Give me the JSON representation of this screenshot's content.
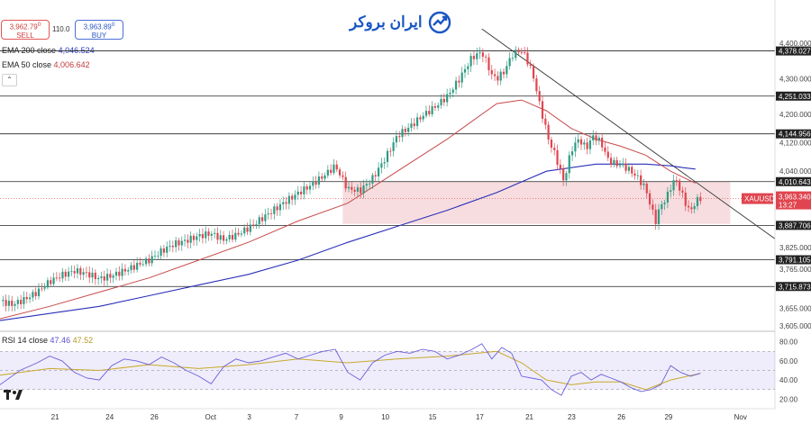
{
  "header": {
    "sell_price": "3,962.79",
    "sell_sup": "0",
    "sell_label": "SELL",
    "buy_price": "3,963.89",
    "buy_sup": "0",
    "buy_label": "BUY",
    "spread": "110.0",
    "ema200_label": "EMA 200 close",
    "ema200_value": "4,046.524",
    "ema50_label": "EMA 50 close",
    "ema50_value": "4,006.642",
    "collapse_glyph": "⌃",
    "rsi_label": "RSI 14 close",
    "rsi_value": "47.46",
    "rsi_ma_value": "47.52",
    "logo_text": "ایران بروکر"
  },
  "colors": {
    "up": "#2e9c84",
    "down": "#e0454f",
    "ema200": "#2a2fb8",
    "ema50": "#c94a4a",
    "zone": "#f2c6c9",
    "rsi": "#6a5fd8",
    "rsi_ma": "#c8a82a",
    "logo": "#1a56c4"
  },
  "chart_data": [
    {
      "type": "line",
      "title": "",
      "symbol": "XAUUSD",
      "current_price": "3,963.340",
      "countdown": "13:27",
      "ylim": [
        3590,
        4420
      ],
      "y_ticks": [
        "4,400.000",
        "4,300.000",
        "4,200.000",
        "4,120.000",
        "4,040.000",
        "3,825.000",
        "3,765.000",
        "3,655.000",
        "3,605.000"
      ],
      "x_ticks": [
        "21",
        "24",
        "26",
        "Oct",
        "3",
        "7",
        "9",
        "10",
        "15",
        "17",
        "21",
        "23",
        "26",
        "29",
        "Nov"
      ],
      "x_tick_positions": [
        22,
        44,
        62,
        84,
        101,
        120,
        138,
        155,
        174,
        193,
        213,
        230,
        250,
        269,
        297
      ],
      "levels": [
        {
          "label": "4,378.027",
          "value": 4378.027
        },
        {
          "label": "4,251.033",
          "value": 4251.033
        },
        {
          "label": "4,144.956",
          "value": 4144.956
        },
        {
          "label": "4,010.643",
          "value": 4010.643
        },
        {
          "label": "3,887.706",
          "value": 3887.706
        },
        {
          "label": "3,791.105",
          "value": 3791.105
        },
        {
          "label": "3,715.873",
          "value": 3715.873
        }
      ],
      "zone": {
        "x_start": 138,
        "x_end": 294,
        "top": 4010,
        "bottom": 3892
      },
      "trendline": {
        "x1": 194,
        "y1": 4440,
        "x2": 312,
        "y2": 3850
      },
      "series": [
        {
          "name": "XAUUSD",
          "x": [
            0,
            5,
            10,
            15,
            20,
            25,
            30,
            35,
            40,
            45,
            50,
            55,
            60,
            65,
            70,
            75,
            80,
            85,
            90,
            95,
            100,
            105,
            110,
            115,
            120,
            125,
            130,
            135,
            140,
            145,
            150,
            155,
            160,
            165,
            170,
            175,
            180,
            185,
            190,
            194,
            196,
            198,
            200,
            203,
            206,
            209,
            211,
            213,
            215,
            217,
            219,
            221,
            223,
            225,
            227,
            230,
            233,
            236,
            239,
            242,
            245,
            248,
            251,
            254,
            257,
            260,
            262,
            264,
            266,
            268,
            270,
            272,
            274,
            276,
            278,
            280,
            282
          ],
          "values": [
            3675,
            3665,
            3680,
            3700,
            3730,
            3748,
            3760,
            3752,
            3738,
            3746,
            3760,
            3775,
            3790,
            3815,
            3835,
            3845,
            3858,
            3865,
            3848,
            3860,
            3880,
            3905,
            3930,
            3955,
            3978,
            4000,
            4025,
            4055,
            3990,
            3985,
            4020,
            4075,
            4140,
            4165,
            4195,
            4220,
            4250,
            4300,
            4360,
            4375,
            4345,
            4310,
            4300,
            4320,
            4365,
            4380,
            4370,
            4340,
            4300,
            4235,
            4180,
            4125,
            4095,
            4055,
            4010,
            4100,
            4130,
            4105,
            4140,
            4120,
            4070,
            4060,
            4055,
            4040,
            4020,
            3990,
            3940,
            3900,
            3945,
            3960,
            3995,
            4020,
            3985,
            3950,
            3925,
            3955,
            3963
          ]
        },
        {
          "name": "EMA 200 close",
          "x": [
            0,
            20,
            40,
            60,
            80,
            100,
            120,
            140,
            160,
            180,
            200,
            210,
            220,
            240,
            260,
            270,
            275,
            280
          ],
          "values": [
            3620,
            3640,
            3660,
            3690,
            3720,
            3750,
            3790,
            3840,
            3885,
            3930,
            3980,
            4010,
            4040,
            4060,
            4060,
            4055,
            4050,
            4046
          ]
        },
        {
          "name": "EMA 50 close",
          "x": [
            0,
            20,
            40,
            60,
            80,
            100,
            120,
            140,
            160,
            180,
            190,
            200,
            210,
            220,
            230,
            240,
            250,
            260,
            270,
            280
          ],
          "values": [
            3625,
            3660,
            3700,
            3740,
            3790,
            3840,
            3900,
            3950,
            4040,
            4130,
            4180,
            4230,
            4240,
            4210,
            4160,
            4130,
            4110,
            4085,
            4040,
            4006
          ]
        }
      ]
    },
    {
      "type": "line",
      "title": "",
      "ylim": [
        10,
        90
      ],
      "y_ticks": [
        "80.00",
        "60.00",
        "40.00",
        "20.00"
      ],
      "reference_lines": [
        70,
        50,
        30
      ],
      "series": [
        {
          "name": "RSI 14 close",
          "x": [
            0,
            8,
            15,
            20,
            25,
            30,
            35,
            40,
            45,
            50,
            55,
            60,
            65,
            70,
            75,
            80,
            85,
            90,
            95,
            100,
            105,
            110,
            115,
            120,
            125,
            130,
            135,
            140,
            145,
            150,
            155,
            160,
            165,
            170,
            175,
            180,
            185,
            190,
            194,
            198,
            202,
            206,
            210,
            214,
            218,
            222,
            226,
            230,
            234,
            238,
            242,
            246,
            250,
            254,
            258,
            262,
            266,
            270,
            274,
            278,
            282
          ],
          "values": [
            35,
            50,
            58,
            65,
            60,
            48,
            42,
            40,
            55,
            62,
            60,
            56,
            64,
            58,
            50,
            44,
            36,
            54,
            62,
            58,
            60,
            64,
            68,
            62,
            66,
            70,
            72,
            48,
            40,
            58,
            66,
            70,
            68,
            72,
            70,
            62,
            66,
            72,
            78,
            62,
            74,
            68,
            44,
            42,
            40,
            30,
            24,
            44,
            48,
            40,
            46,
            42,
            38,
            32,
            28,
            30,
            35,
            55,
            48,
            44,
            47
          ]
        },
        {
          "name": "RSI MA",
          "x": [
            0,
            20,
            40,
            60,
            80,
            100,
            120,
            140,
            160,
            180,
            200,
            210,
            220,
            230,
            240,
            250,
            260,
            270,
            282
          ],
          "values": [
            45,
            52,
            50,
            56,
            52,
            56,
            62,
            58,
            62,
            65,
            70,
            58,
            40,
            35,
            38,
            38,
            30,
            40,
            47
          ]
        }
      ]
    }
  ]
}
